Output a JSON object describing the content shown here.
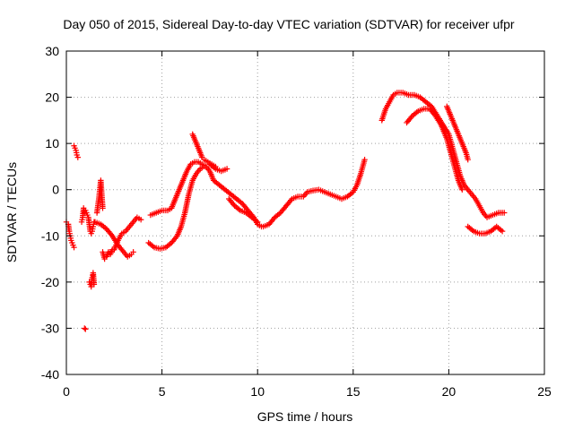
{
  "chart_data": {
    "type": "scatter",
    "title": "Day 050 of 2015, Sidereal Day-to-day VTEC variation (SDTVAR) for receiver ufpr",
    "xlabel": "GPS time / hours",
    "ylabel": "SDTVAR / TECUs",
    "xlim": [
      0,
      25
    ],
    "ylim": [
      -40,
      30
    ],
    "xticks": [
      "0",
      "5",
      "10",
      "15",
      "20",
      "25"
    ],
    "yticks": [
      "-40",
      "-30",
      "-20",
      "-10",
      "0",
      "10",
      "20",
      "30"
    ],
    "grid": true,
    "marker": "+",
    "color": "#ff0000",
    "series": [
      {
        "name": "s1",
        "points": [
          [
            0.0,
            -7
          ],
          [
            0.1,
            -7.5
          ],
          [
            0.15,
            -9
          ],
          [
            0.2,
            -10
          ],
          [
            0.25,
            -11
          ],
          [
            0.3,
            -11.5
          ],
          [
            0.35,
            -12
          ],
          [
            0.4,
            -12.5
          ]
        ]
      },
      {
        "name": "s2",
        "points": [
          [
            0.4,
            9.5
          ],
          [
            0.45,
            9
          ],
          [
            0.5,
            8.5
          ],
          [
            0.55,
            7.5
          ],
          [
            0.6,
            7
          ]
        ]
      },
      {
        "name": "s3",
        "points": [
          [
            0.8,
            -7
          ],
          [
            0.85,
            -6
          ],
          [
            0.9,
            -4
          ],
          [
            0.95,
            -5
          ],
          [
            1.0,
            -4.5
          ],
          [
            1.05,
            -5
          ],
          [
            1.1,
            -5.5
          ],
          [
            1.15,
            -6
          ],
          [
            1.2,
            -7.5
          ],
          [
            1.25,
            -9
          ],
          [
            1.3,
            -9.5
          ],
          [
            1.35,
            -9
          ],
          [
            1.4,
            -8
          ],
          [
            1.45,
            -7
          ]
        ]
      },
      {
        "name": "s4",
        "points": [
          [
            1.2,
            -20
          ],
          [
            1.25,
            -20.5
          ],
          [
            1.3,
            -21
          ],
          [
            1.35,
            -19
          ],
          [
            1.4,
            -18
          ],
          [
            1.45,
            -20.5
          ]
        ]
      },
      {
        "name": "s5",
        "points": [
          [
            0.95,
            -30
          ],
          [
            1.0,
            -30.2
          ]
        ]
      },
      {
        "name": "s6",
        "points": [
          [
            1.6,
            -5
          ],
          [
            1.65,
            -3.5
          ],
          [
            1.7,
            -2
          ],
          [
            1.75,
            0
          ],
          [
            1.8,
            2
          ],
          [
            1.85,
            -1
          ],
          [
            1.9,
            -4
          ]
        ]
      },
      {
        "name": "s7",
        "points": [
          [
            1.5,
            -7
          ],
          [
            1.8,
            -7.5
          ],
          [
            2.1,
            -8.5
          ],
          [
            2.4,
            -10
          ],
          [
            2.7,
            -12
          ],
          [
            3.0,
            -13.5
          ],
          [
            3.2,
            -14.5
          ],
          [
            3.4,
            -14
          ],
          [
            3.5,
            -13.5
          ]
        ]
      },
      {
        "name": "s8",
        "points": [
          [
            1.9,
            -13.5
          ],
          [
            2.0,
            -15
          ],
          [
            2.1,
            -14.5
          ],
          [
            2.2,
            -13.5
          ],
          [
            2.3,
            -14
          ],
          [
            2.4,
            -13
          ]
        ]
      },
      {
        "name": "s9",
        "points": [
          [
            2.5,
            -13
          ],
          [
            2.7,
            -11
          ],
          [
            2.9,
            -9.5
          ],
          [
            3.1,
            -9
          ],
          [
            3.3,
            -8
          ],
          [
            3.5,
            -7
          ],
          [
            3.7,
            -6
          ],
          [
            3.9,
            -6.5
          ]
        ]
      },
      {
        "name": "s10",
        "points": [
          [
            4.3,
            -11.5
          ],
          [
            4.6,
            -12.5
          ],
          [
            4.9,
            -12.8
          ],
          [
            5.2,
            -12.5
          ],
          [
            5.5,
            -11.5
          ],
          [
            5.8,
            -10
          ],
          [
            6.0,
            -8
          ],
          [
            6.2,
            -5
          ],
          [
            6.4,
            -1
          ],
          [
            6.6,
            2
          ],
          [
            6.8,
            3.5
          ],
          [
            7.0,
            4.5
          ],
          [
            7.2,
            5
          ]
        ]
      },
      {
        "name": "s11",
        "points": [
          [
            4.4,
            -5.5
          ],
          [
            4.7,
            -5
          ],
          [
            5.0,
            -4.5
          ],
          [
            5.3,
            -4.5
          ],
          [
            5.5,
            -4
          ],
          [
            5.7,
            -2
          ],
          [
            5.9,
            0
          ],
          [
            6.1,
            2
          ],
          [
            6.3,
            4
          ],
          [
            6.5,
            5.5
          ],
          [
            6.7,
            6
          ],
          [
            6.9,
            6
          ],
          [
            7.1,
            5.5
          ],
          [
            7.3,
            5
          ],
          [
            7.5,
            4
          ],
          [
            7.7,
            2
          ],
          [
            8.0,
            1
          ],
          [
            8.3,
            0
          ],
          [
            8.6,
            -1
          ],
          [
            8.9,
            -2
          ],
          [
            9.2,
            -3
          ],
          [
            9.5,
            -4.5
          ],
          [
            9.8,
            -6
          ],
          [
            10.0,
            -7.5
          ],
          [
            10.2,
            -8
          ]
        ]
      },
      {
        "name": "s12",
        "points": [
          [
            6.6,
            12
          ],
          [
            6.7,
            11
          ],
          [
            6.8,
            10
          ],
          [
            6.9,
            9
          ],
          [
            7.0,
            8
          ],
          [
            7.1,
            7
          ],
          [
            7.2,
            6.5
          ],
          [
            7.4,
            6
          ],
          [
            7.6,
            5.5
          ],
          [
            7.8,
            5
          ]
        ]
      },
      {
        "name": "s13",
        "points": [
          [
            7.5,
            5.5
          ],
          [
            7.8,
            4.5
          ],
          [
            8.1,
            4
          ],
          [
            8.4,
            4.5
          ]
        ]
      },
      {
        "name": "s14",
        "points": [
          [
            8.5,
            -2
          ],
          [
            8.8,
            -3.5
          ],
          [
            9.1,
            -4.5
          ],
          [
            9.4,
            -5
          ],
          [
            9.7,
            -6
          ],
          [
            10.0,
            -7
          ]
        ]
      },
      {
        "name": "s15",
        "points": [
          [
            10.3,
            -8
          ],
          [
            10.6,
            -7.5
          ],
          [
            10.9,
            -6
          ],
          [
            11.2,
            -5
          ],
          [
            11.5,
            -3.5
          ],
          [
            11.8,
            -2
          ],
          [
            12.1,
            -1.5
          ],
          [
            12.4,
            -1.5
          ],
          [
            12.6,
            -0.5
          ],
          [
            12.9,
            -0.2
          ],
          [
            13.2,
            0
          ],
          [
            13.5,
            -0.5
          ],
          [
            13.8,
            -1
          ],
          [
            14.1,
            -1.5
          ],
          [
            14.4,
            -2
          ],
          [
            14.7,
            -1.5
          ],
          [
            15.0,
            -0.5
          ],
          [
            15.2,
            1
          ],
          [
            15.4,
            3.5
          ],
          [
            15.6,
            6.5
          ]
        ]
      },
      {
        "name": "s16",
        "points": [
          [
            16.5,
            15
          ],
          [
            16.7,
            17.5
          ],
          [
            16.9,
            19
          ],
          [
            17.1,
            20.5
          ],
          [
            17.3,
            21
          ],
          [
            17.6,
            21
          ],
          [
            17.9,
            20.5
          ],
          [
            18.2,
            20.5
          ],
          [
            18.5,
            20
          ],
          [
            18.8,
            19
          ],
          [
            19.1,
            18
          ],
          [
            19.4,
            16
          ],
          [
            19.7,
            14
          ],
          [
            20.0,
            12
          ],
          [
            20.2,
            9
          ],
          [
            20.4,
            6
          ],
          [
            20.6,
            3
          ],
          [
            20.8,
            1
          ],
          [
            21.0,
            0
          ],
          [
            21.2,
            -1
          ],
          [
            21.4,
            -2
          ],
          [
            21.6,
            -3.5
          ],
          [
            21.8,
            -5
          ],
          [
            22.0,
            -6
          ],
          [
            22.3,
            -5.5
          ],
          [
            22.6,
            -5
          ],
          [
            22.9,
            -5
          ]
        ]
      },
      {
        "name": "s17",
        "points": [
          [
            17.8,
            14.5
          ],
          [
            18.1,
            16
          ],
          [
            18.4,
            17
          ],
          [
            18.7,
            17.5
          ],
          [
            19.0,
            17.5
          ],
          [
            19.3,
            16
          ],
          [
            19.6,
            14
          ],
          [
            19.9,
            11
          ],
          [
            20.1,
            8
          ],
          [
            20.3,
            5
          ],
          [
            20.5,
            2
          ],
          [
            20.7,
            0
          ]
        ]
      },
      {
        "name": "s18",
        "points": [
          [
            19.9,
            18
          ],
          [
            20.1,
            16
          ],
          [
            20.3,
            14
          ],
          [
            20.5,
            12
          ],
          [
            20.7,
            10
          ],
          [
            20.9,
            8
          ],
          [
            21.0,
            6.5
          ]
        ]
      },
      {
        "name": "s19",
        "points": [
          [
            21.0,
            -8
          ],
          [
            21.3,
            -9
          ],
          [
            21.6,
            -9.5
          ],
          [
            21.9,
            -9.5
          ],
          [
            22.2,
            -9
          ],
          [
            22.5,
            -8
          ],
          [
            22.8,
            -9
          ]
        ]
      }
    ]
  }
}
